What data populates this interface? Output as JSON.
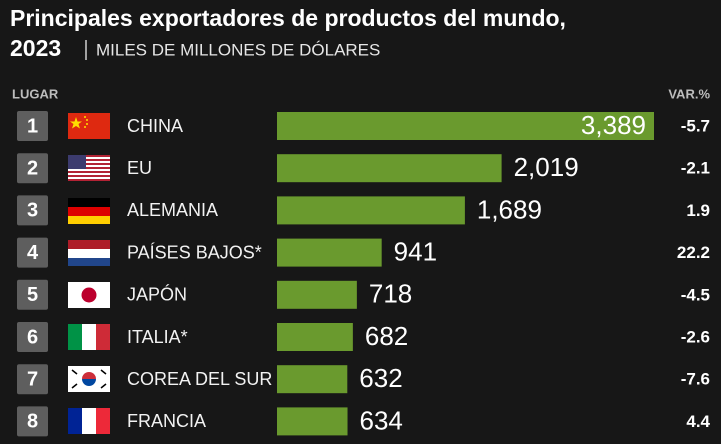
{
  "chart_data": {
    "type": "bar",
    "title": "Principales exportadores de productos del mundo,",
    "year": "2023",
    "subtitle": "MILES DE MILLONES DE DÓLARES",
    "rank_label": "LUGAR",
    "change_label": "VAR.%",
    "ranks": [
      1,
      2,
      3,
      4,
      5,
      6,
      7,
      8
    ],
    "categories": [
      "CHINA",
      "EU",
      "ALEMANIA",
      "PAÍSES BAJOS*",
      "JAPÓN",
      "ITALIA*",
      "COREA DEL SUR",
      "FRANCIA"
    ],
    "values": [
      3389,
      2019,
      1689,
      941,
      718,
      682,
      632,
      634
    ],
    "value_labels": [
      "3,389",
      "2,019",
      "1,689",
      "941",
      "718",
      "682",
      "632",
      "634"
    ],
    "changes": [
      -5.7,
      -2.1,
      1.9,
      22.2,
      -4.5,
      -2.6,
      -7.6,
      4.4
    ],
    "color": "#6a9a2e"
  }
}
